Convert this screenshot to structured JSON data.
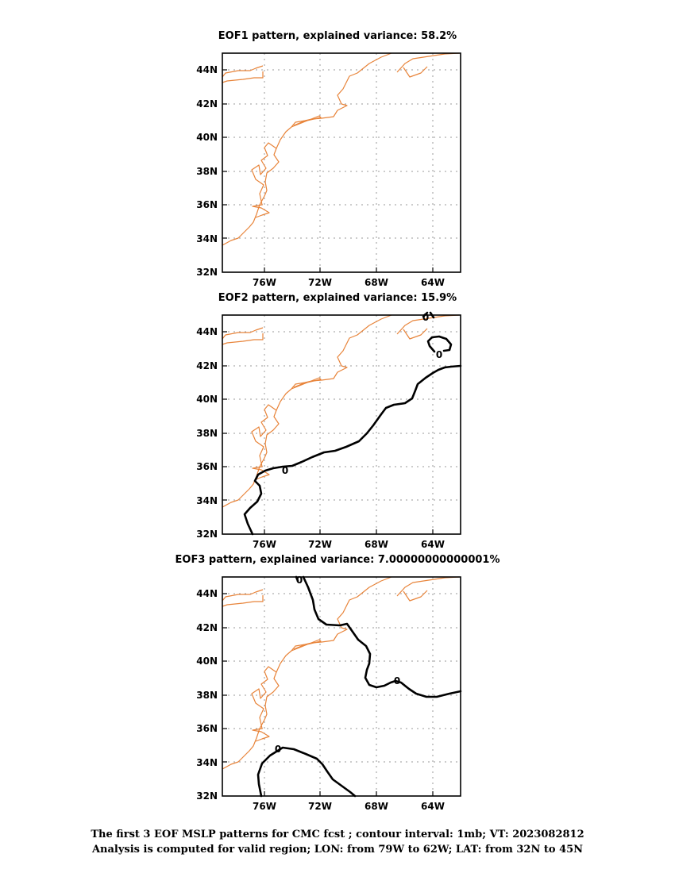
{
  "panels": [
    {
      "title": "EOF1 pattern, explained variance: 58.2%",
      "contour_labels": []
    },
    {
      "title": "EOF2 pattern, explained variance: 15.9%",
      "contour_labels": [
        "0",
        "0",
        "0"
      ]
    },
    {
      "title": "EOF3 pattern, explained variance: 7.00000000000001%",
      "contour_labels": [
        "0",
        "0",
        "0"
      ]
    }
  ],
  "lat_ticks": [
    "32N",
    "34N",
    "36N",
    "38N",
    "40N",
    "42N",
    "44N"
  ],
  "lon_ticks": [
    "76W",
    "72W",
    "68W",
    "64W"
  ],
  "caption_line1": "The first 3 EOF MSLP patterns for CMC fcst ; contour interval: 1mb; VT: 2023082812",
  "caption_line2": "Analysis is computed for valid region; LON: from 79W to 62W; LAT: from 32N to 45N",
  "colors": {
    "coastline": "#e8843a",
    "contour": "#000000",
    "grid": "#9a9a9a"
  }
}
